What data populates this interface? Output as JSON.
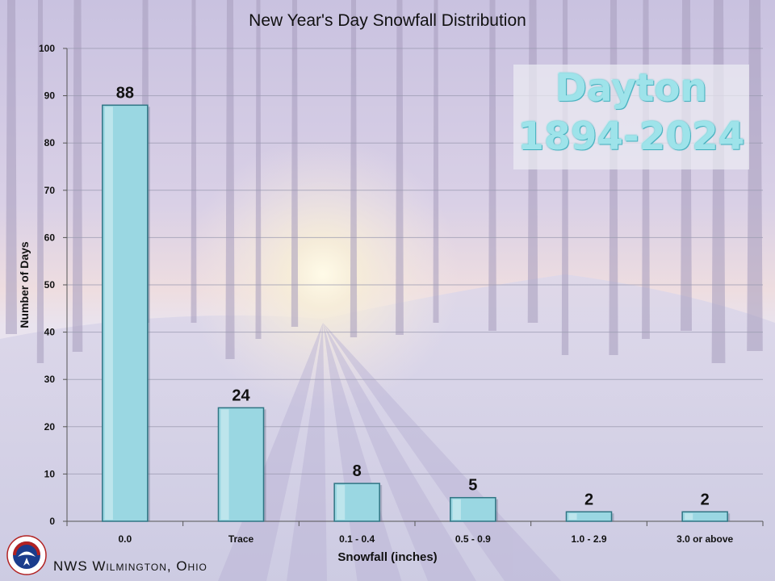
{
  "colors": {
    "bar_fill": "#9ad7e2",
    "bar_stroke": "#2f7583",
    "title_text": "#111111",
    "overlay_text": "#9ee3ea"
  },
  "overlay": {
    "line1": "Dayton",
    "line2": "1894-2024"
  },
  "footer": {
    "office": "NWS Wilmington, Ohio",
    "logo_icon": "nws-logo-icon"
  },
  "chart_data": {
    "type": "bar",
    "title": "New Year's Day Snowfall Distribution",
    "xlabel": "Snowfall (inches)",
    "ylabel": "Number of Days",
    "categories": [
      "0.0",
      "Trace",
      "0.1 - 0.4",
      "0.5 - 0.9",
      "1.0 - 2.9",
      "3.0 or above"
    ],
    "values": [
      88,
      24,
      8,
      5,
      2,
      2
    ],
    "ylim": [
      0,
      100
    ],
    "yticks": [
      0,
      10,
      20,
      30,
      40,
      50,
      60,
      70,
      80,
      90,
      100
    ],
    "grid": true,
    "data_labels": true,
    "legend": "none"
  }
}
